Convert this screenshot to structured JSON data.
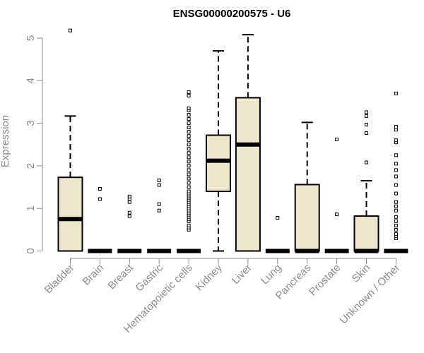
{
  "chart_data": {
    "type": "boxplot",
    "title": "ENSG00000200575 - U6",
    "ylabel": "Expression",
    "xlabel": "",
    "ylim": [
      0,
      5.2
    ],
    "yticks": [
      "0",
      "1",
      "2",
      "3",
      "4",
      "5"
    ],
    "box_fill": "#ede6cd",
    "categories": [
      "Bladder",
      "Brain",
      "Breast",
      "Gastric",
      "Hematopoietic cells",
      "Kidney",
      "Liver",
      "Lung",
      "Pancreas",
      "Prostate",
      "Skin",
      "Unknown / Other"
    ],
    "boxes": [
      {
        "min": 0,
        "q1": 0,
        "median": 0.75,
        "q3": 1.73,
        "max": 3.17,
        "outliers": [
          5.18
        ]
      },
      {
        "min": 0,
        "q1": 0,
        "median": 0,
        "q3": 0,
        "max": 0,
        "outliers": [
          1.22,
          1.46
        ]
      },
      {
        "min": 0,
        "q1": 0,
        "median": 0,
        "q3": 0,
        "max": 0,
        "outliers": [
          0.82,
          0.9,
          1.15,
          1.22,
          1.28
        ]
      },
      {
        "min": 0,
        "q1": 0,
        "median": 0,
        "q3": 0,
        "max": 0,
        "outliers": [
          0.95,
          1.1,
          1.55,
          1.66
        ]
      },
      {
        "min": 0,
        "q1": 0,
        "median": 0,
        "q3": 0,
        "max": 0,
        "outliers": [
          0.5,
          0.55,
          0.6,
          0.7,
          0.75,
          0.8,
          0.85,
          0.9,
          0.95,
          1.0,
          1.05,
          1.1,
          1.15,
          1.2,
          1.25,
          1.3,
          1.35,
          1.4,
          1.5,
          1.6,
          1.7,
          1.8,
          1.9,
          2.0,
          2.1,
          2.2,
          2.3,
          2.4,
          2.5,
          2.6,
          2.7,
          2.8,
          2.9,
          3.0,
          3.1,
          3.2,
          3.3,
          3.35,
          3.65,
          3.73
        ]
      },
      {
        "min": 0,
        "q1": 1.4,
        "median": 2.12,
        "q3": 2.72,
        "max": 4.7,
        "outliers": []
      },
      {
        "min": 0,
        "q1": 0,
        "median": 2.5,
        "q3": 3.6,
        "max": 5.08,
        "outliers": []
      },
      {
        "min": 0,
        "q1": 0,
        "median": 0,
        "q3": 0,
        "max": 0,
        "outliers": [
          0.78
        ]
      },
      {
        "min": 0,
        "q1": 0,
        "median": 0,
        "q3": 1.56,
        "max": 3.02,
        "outliers": []
      },
      {
        "min": 0,
        "q1": 0,
        "median": 0,
        "q3": 0,
        "max": 0,
        "outliers": [
          0.86,
          2.62
        ]
      },
      {
        "min": 0,
        "q1": 0,
        "median": 0,
        "q3": 0.82,
        "max": 1.65,
        "outliers": [
          2.08,
          2.77,
          2.97,
          3.17,
          3.26
        ]
      },
      {
        "min": 0,
        "q1": 0,
        "median": 0,
        "q3": 0,
        "max": 0,
        "outliers": [
          0.3,
          0.35,
          0.4,
          0.5,
          0.6,
          0.7,
          0.8,
          0.95,
          1.05,
          1.15,
          1.35,
          1.55,
          1.75,
          1.9,
          2.05,
          2.25,
          2.55,
          2.6,
          2.85,
          2.92,
          3.7
        ]
      }
    ]
  }
}
